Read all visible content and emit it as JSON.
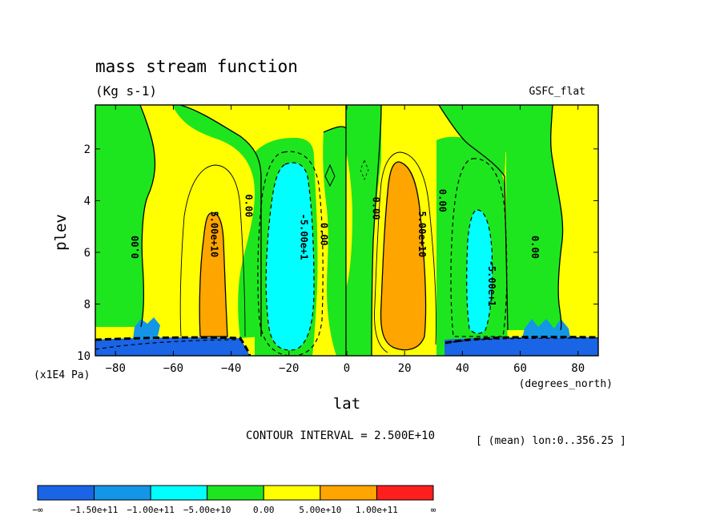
{
  "chart_data": {
    "type": "contour",
    "title": "mass stream function",
    "units": "(Kg s-1)",
    "dataset_label": "GSFC_flat",
    "xlabel": "lat",
    "x_units": "(degrees_north)",
    "ylabel": "plev",
    "y_units": "(x1E4 Pa)",
    "xlim": [
      -87,
      87
    ],
    "ylim": [
      10,
      0.3
    ],
    "x_ticks": [
      -80,
      -60,
      -40,
      -20,
      0,
      20,
      40,
      60,
      80
    ],
    "x_tick_labels": [
      "−80",
      "−60",
      "−40",
      "−20",
      "0",
      "20",
      "40",
      "60",
      "80"
    ],
    "y_ticks": [
      2,
      4,
      6,
      8,
      10
    ],
    "y_tick_labels": [
      "2",
      "4",
      "6",
      "8",
      "10"
    ],
    "contour_interval_text": "CONTOUR INTERVAL = 2.500E+10",
    "mean_text": "[ (mean) lon:0..356.25 ]",
    "contour_labels": [
      {
        "text": "0.00",
        "lat": -72,
        "plev": 5.8,
        "rot": -90
      },
      {
        "text": "5.00e+10",
        "lat": -47,
        "plev": 5.3,
        "rot": 90
      },
      {
        "text": "0.00",
        "lat": -35,
        "plev": 4.2,
        "rot": 90
      },
      {
        "text": "-5.00e+1",
        "lat": -16,
        "plev": 5.4,
        "rot": 90
      },
      {
        "text": "0.00",
        "lat": -9,
        "plev": 5.3,
        "rot": 90
      },
      {
        "text": "0.00",
        "lat": 9,
        "plev": 4.3,
        "rot": 90
      },
      {
        "text": "5.00e+10",
        "lat": 25,
        "plev": 5.3,
        "rot": 90
      },
      {
        "text": "0.00",
        "lat": 32,
        "plev": 4.0,
        "rot": 90
      },
      {
        "text": "-5.00e+1",
        "lat": 49,
        "plev": 7.2,
        "rot": 90
      },
      {
        "text": "0.00",
        "lat": 64,
        "plev": 5.8,
        "rot": 90
      }
    ],
    "colorbar": {
      "colors": [
        "#1a64e6",
        "#1496e6",
        "#00ffff",
        "#1ee61e",
        "#ffff00",
        "#ffa500",
        "#ff1e1e"
      ],
      "labels": [
        "−∞",
        "−1.50e+11",
        "−1.00e+11",
        "−5.00e+10",
        "0.00",
        "5.00e+10",
        "1.00e+11",
        "∞"
      ]
    }
  }
}
